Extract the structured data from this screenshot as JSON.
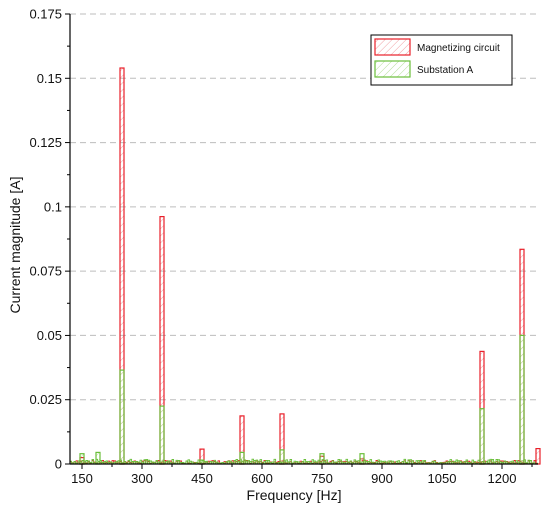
{
  "chart_data": {
    "type": "bar",
    "xlabel": "Frequency [Hz]",
    "ylabel": "Current magnitude [A]",
    "xlim": [
      120,
      1290
    ],
    "ylim": [
      0,
      0.175
    ],
    "x_ticks": [
      150,
      300,
      450,
      600,
      750,
      900,
      1050,
      1200
    ],
    "x_tick_labels": [
      "150",
      "300",
      "450",
      "600",
      "750",
      "900",
      "1050",
      "1200"
    ],
    "y_ticks": [
      0,
      0.025,
      0.05,
      0.075,
      0.1,
      0.125,
      0.15,
      0.175
    ],
    "y_tick_labels": [
      "0",
      "0.025",
      "0.05",
      "0.075",
      "0.1",
      "0.125",
      "0.15",
      "0.175"
    ],
    "grid": "horizontal-dashed",
    "legend_position": "top-right",
    "colors": {
      "magnetizing": "#e8202a",
      "substation": "#6abf3a"
    },
    "series": [
      {
        "name": "Magnetizing circuit",
        "style": "hatched-red",
        "x": [
          150,
          250,
          350,
          450,
          550,
          650,
          750,
          850,
          1150,
          1250,
          1290
        ],
        "values": [
          0.0025,
          0.154,
          0.0962,
          0.0058,
          0.0187,
          0.0195,
          0.003,
          0.002,
          0.0438,
          0.0835,
          0.006
        ]
      },
      {
        "name": "Substation A",
        "style": "hatched-green",
        "x": [
          150,
          190,
          250,
          350,
          450,
          550,
          650,
          750,
          850,
          1150,
          1250
        ],
        "values": [
          0.004,
          0.0045,
          0.0365,
          0.0225,
          0.0015,
          0.0045,
          0.0055,
          0.004,
          0.004,
          0.0215,
          0.05
        ]
      }
    ]
  }
}
